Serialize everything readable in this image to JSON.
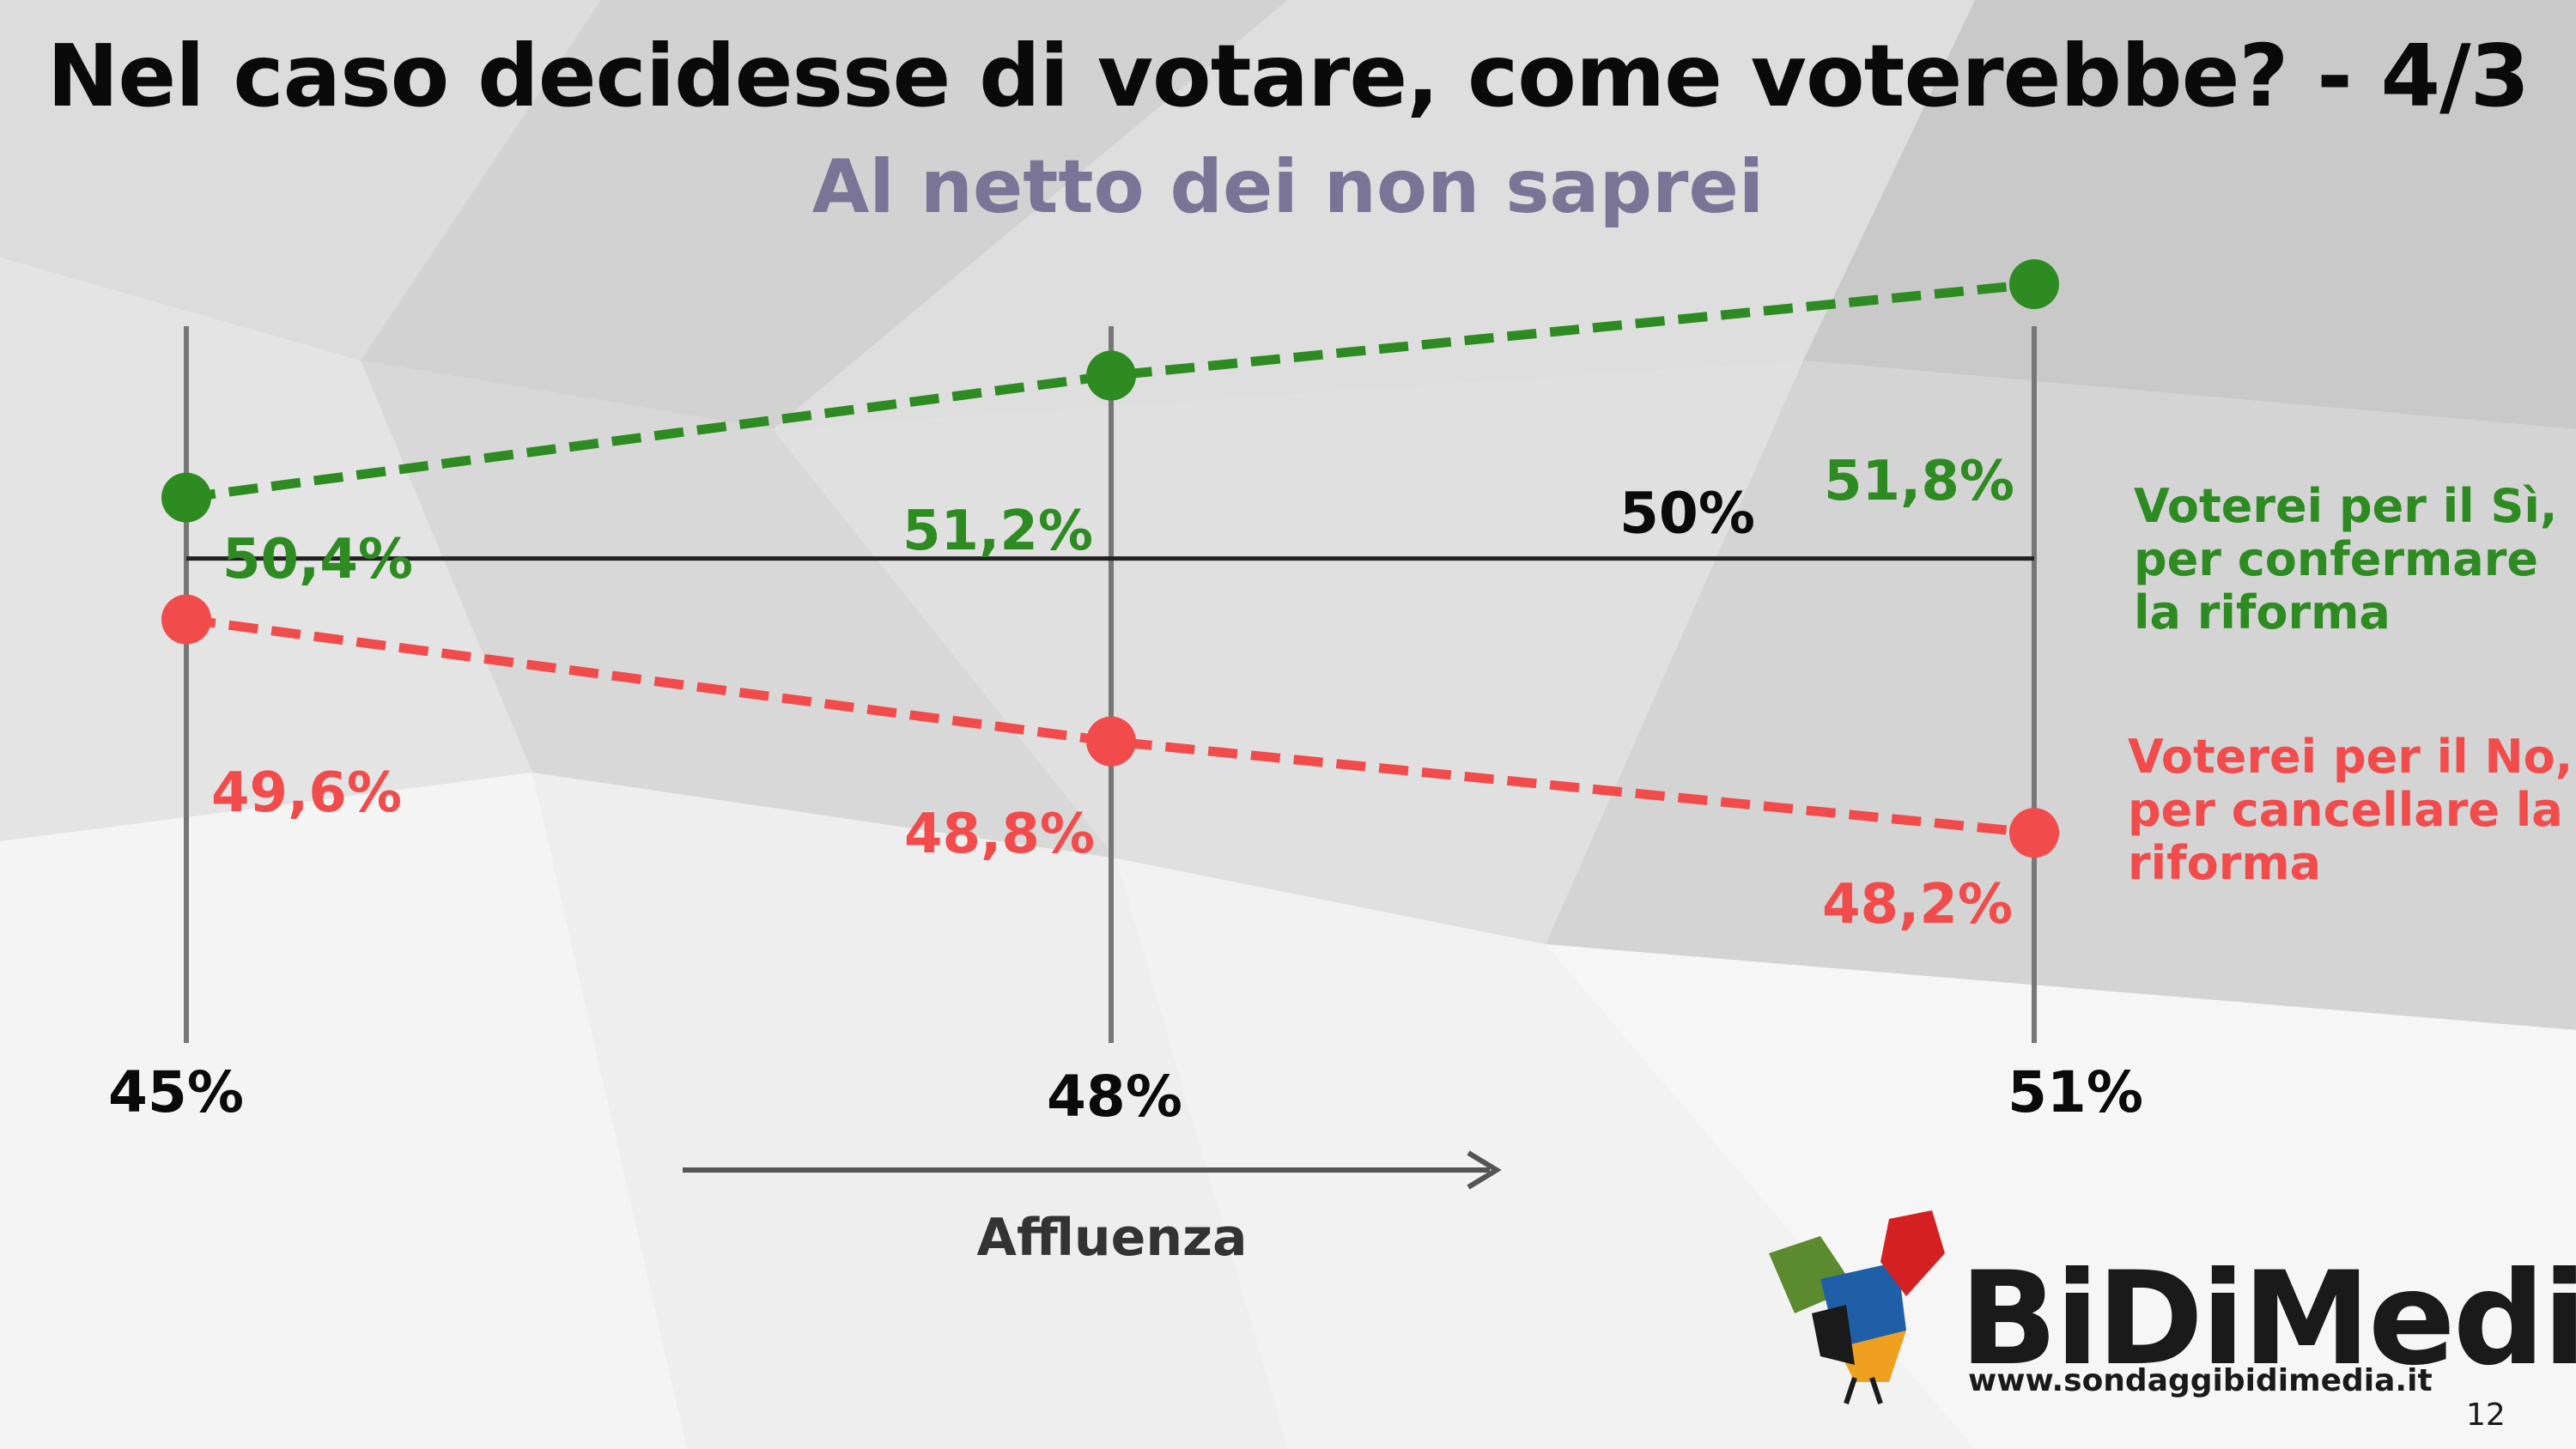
{
  "header": {
    "title": "Nel caso decidesse di votare, come voterebbe? - 4/3",
    "subtitle": "Al netto dei non saprei"
  },
  "colors": {
    "si": "#2e8b22",
    "no": "#f24b4b",
    "text": "#0a0a0a",
    "subtitle": "#7a7596"
  },
  "chart_data": {
    "type": "line",
    "x": [
      "45%",
      "48%",
      "51%"
    ],
    "series": [
      {
        "name": "Voterei per il Sì, per confermare la riforma",
        "name_lines": [
          "Voterei per il Sì,",
          "per confermare",
          "la riforma"
        ],
        "values": [
          50.4,
          51.2,
          51.8
        ],
        "labels": [
          "50,4%",
          "51,2%",
          "51,8%"
        ],
        "color": "#2e8b22"
      },
      {
        "name": "Voterei per il No, per cancellare la riforma",
        "name_lines": [
          "Voterei per il No,",
          "per cancellare la",
          "riforma"
        ],
        "values": [
          49.6,
          48.8,
          48.2
        ],
        "labels": [
          "49,6%",
          "48,8%",
          "48,2%"
        ],
        "color": "#f24b4b"
      }
    ],
    "reference_line": {
      "value": 50,
      "label": "50%"
    },
    "xlabel": "Affluenza",
    "ylim": [
      47.3,
      52.2
    ],
    "grid": "vertical"
  },
  "logo": {
    "name": "BiDiMedia",
    "url": "www.sondaggibidimedia.it"
  },
  "page_number": "12"
}
